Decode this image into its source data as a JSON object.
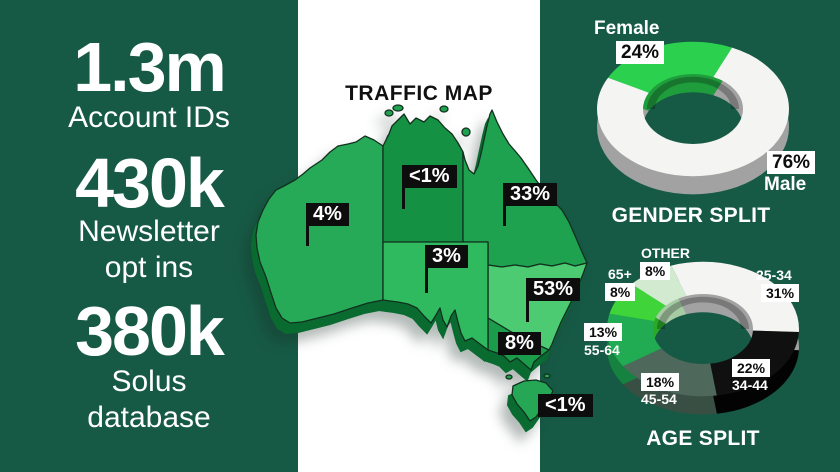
{
  "colors": {
    "panel_green": "#165a45",
    "band_white": "#ffffff",
    "tag_black": "#0d0d0d",
    "accent_green": "#2bd14e"
  },
  "left_panel": {
    "stats": [
      {
        "value": "1.3m",
        "label": "Account IDs"
      },
      {
        "value": "430k",
        "label": "Newsletter\nopt ins"
      },
      {
        "value": "380k",
        "label": "Solus\ndatabase"
      }
    ]
  },
  "traffic_map": {
    "title": "TRAFFIC MAP",
    "tags": [
      {
        "region": "Western Australia",
        "value": "4%"
      },
      {
        "region": "Northern Territory",
        "value": "<1%"
      },
      {
        "region": "Queensland",
        "value": "33%"
      },
      {
        "region": "South Australia",
        "value": "3%"
      },
      {
        "region": "New South Wales",
        "value": "53%"
      },
      {
        "region": "Victoria",
        "value": "8%"
      },
      {
        "region": "Tasmania",
        "value": "<1%"
      }
    ]
  },
  "gender_split": {
    "title": "GENDER SPLIT",
    "female_label": "Female",
    "female_value": "24%",
    "male_value": "76%",
    "male_label": "Male"
  },
  "age_split": {
    "title": "AGE SPLIT",
    "other": "OTHER",
    "other_pct": "8%",
    "a65": "65+",
    "a65_pct": "8%",
    "a55_pct": "13%",
    "a55": "55-64",
    "a45_pct": "18%",
    "a45": "45-54",
    "a34_pct": "22%",
    "a34": "34-44",
    "a25": "25-34",
    "a25_pct": "31%"
  },
  "chart_data": [
    {
      "type": "pie",
      "title": "GENDER SPLIT",
      "labels": [
        "Female",
        "Male"
      ],
      "values": [
        24,
        76
      ],
      "colors": [
        "#2bd14e",
        "#f4f4f2"
      ],
      "depth_colors": [
        "#1f9c3c",
        "#a2a2a2"
      ],
      "start_angle_deg": -62,
      "legend_position": "around",
      "donut": true
    },
    {
      "type": "pie",
      "title": "AGE SPLIT",
      "labels": [
        "25-34",
        "34-44",
        "45-54",
        "55-64",
        "65+",
        "OTHER"
      ],
      "values": [
        31,
        22,
        18,
        13,
        8,
        8
      ],
      "colors": [
        "#f4f4f2",
        "#101010",
        "#4f685c",
        "#21ab52",
        "#3fd43a",
        "#d2ebd0"
      ],
      "depth_colors": [
        "#a2a2a2",
        "#030303",
        "#394f44",
        "#168240",
        "#2aa828",
        "#a7cba4"
      ],
      "start_angle_deg": -19,
      "legend_position": "around",
      "donut": true
    },
    {
      "type": "heatmap",
      "title": "TRAFFIC MAP",
      "categories": [
        "Western Australia",
        "Northern Territory",
        "Queensland",
        "South Australia",
        "New South Wales",
        "Victoria",
        "Tasmania"
      ],
      "values": [
        4,
        0.9,
        33,
        3,
        53,
        8,
        0.9
      ],
      "values_text": [
        "4%",
        "<1%",
        "33%",
        "3%",
        "53%",
        "8%",
        "<1%"
      ]
    }
  ]
}
